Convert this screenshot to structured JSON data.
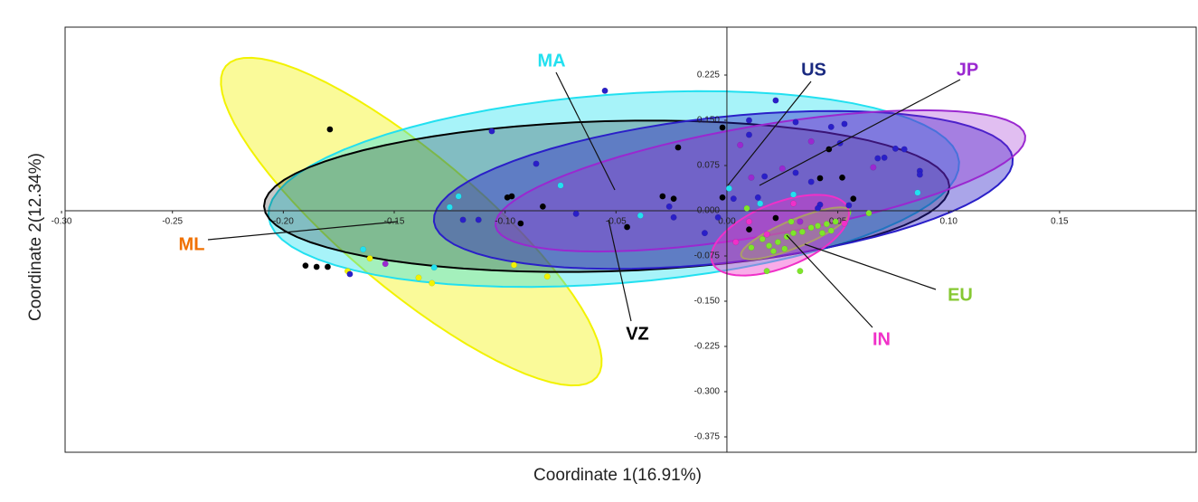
{
  "chart_data": {
    "type": "scatter",
    "x_label": "Coordinate 1(16.91%)",
    "y_label": "Coordinate 2(12.34%)",
    "xlim": [
      -0.2984,
      0.2116
    ],
    "ylim": [
      -0.4005,
      0.3045
    ],
    "xticks": [
      {
        "value": -0.3,
        "label": "-0.30"
      },
      -0.25,
      {
        "value": -0.2,
        "label": "-0.20"
      },
      -0.15,
      {
        "value": -0.1,
        "label": "-0.10"
      },
      -0.05,
      {
        "value": 0,
        "label": "0.00"
      },
      0.05,
      {
        "value": 0.1,
        "label": "0.10"
      },
      0.15
    ],
    "yticks": [
      0.225,
      {
        "value": 0.15,
        "label": "0.150"
      },
      0.075,
      {
        "value": 0,
        "label": "0.000"
      },
      -0.075,
      {
        "value": -0.15,
        "label": "-0.150"
      },
      -0.225,
      {
        "value": -0.3,
        "label": "-0.300"
      },
      -0.375
    ],
    "series": [
      {
        "name": "ML",
        "color": "#f2f200",
        "label_color": "#f07000",
        "x": [
          -0.161,
          -0.171,
          -0.139,
          -0.133,
          -0.096,
          -0.081
        ],
        "y": [
          -0.079,
          -0.1,
          -0.111,
          -0.12,
          -0.09,
          -0.109
        ],
        "ellipse": {
          "center": [
            -0.1423,
            -0.018
          ],
          "axis1": [
            0.0836,
            -0.258
          ],
          "axis2": [
            0.0196,
            0.0855
          ]
        }
      },
      {
        "name": "MA",
        "color": "#22e0f0",
        "label_color": "#22e0f0",
        "x": [
          -0.164,
          -0.132,
          -0.125,
          -0.121,
          -0.075,
          -0.039,
          0.001,
          0.03,
          0.086,
          0.015
        ],
        "y": [
          -0.064,
          -0.094,
          0.006,
          0.024,
          0.042,
          -0.008,
          0.037,
          0.027,
          0.03,
          0.012
        ],
        "ellipse": {
          "center": [
            -0.051,
            0.036
          ],
          "axis1": [
            0.1557,
            0.045
          ],
          "axis2": [
            0.0033,
            -0.156
          ]
        }
      },
      {
        "name": "VZ",
        "color": "#000000",
        "label_color": "#000000",
        "x": [
          -0.179,
          -0.19,
          -0.185,
          -0.18,
          -0.099,
          -0.097,
          -0.093,
          -0.083,
          -0.045,
          -0.029,
          -0.024,
          -0.022,
          -0.002,
          -0.002,
          0.01,
          0.042,
          0.052,
          0.057,
          0.022,
          0.046
        ],
        "y": [
          0.135,
          -0.091,
          -0.093,
          -0.093,
          0.022,
          0.024,
          -0.021,
          0.007,
          -0.027,
          0.024,
          0.02,
          0.105,
          0.138,
          0.022,
          -0.031,
          0.054,
          0.055,
          0.02,
          -0.012,
          0.102
        ],
        "ellipse": {
          "center": [
            -0.0542,
            0.024
          ],
          "axis1": [
            0.1545,
            0.0165
          ],
          "axis2": [
            0.0008,
            -0.1245
          ]
        }
      },
      {
        "name": "US",
        "color": "#2a1fc8",
        "label_color": "#1a2a80",
        "x": [
          -0.055,
          -0.106,
          -0.086,
          -0.119,
          -0.112,
          -0.068,
          -0.024,
          -0.026,
          -0.01,
          -0.004,
          0.003,
          0.01,
          0.01,
          0.022,
          0.031,
          0.017,
          0.031,
          0.038,
          0.042,
          0.047,
          0.053,
          0.041,
          0.055,
          0.068,
          0.071,
          0.076,
          0.08,
          0.087,
          0.087,
          -0.17,
          0.051,
          0.014
        ],
        "y": [
          0.199,
          0.132,
          0.078,
          -0.015,
          -0.015,
          -0.005,
          -0.011,
          0.007,
          -0.037,
          -0.011,
          0.02,
          0.15,
          0.126,
          0.183,
          0.147,
          0.057,
          0.063,
          0.048,
          0.01,
          0.139,
          0.144,
          0.004,
          0.009,
          0.087,
          0.088,
          0.103,
          0.102,
          0.066,
          0.06,
          -0.105,
          0.112,
          0.022
        ],
        "ellipse": {
          "center": [
            -0.0016,
            0.0345
          ],
          "axis1": [
            0.1305,
            0.0525
          ],
          "axis2": [
            0.0037,
            -0.12
          ]
        }
      },
      {
        "name": "JP",
        "color": "#9a28d0",
        "label_color": "#9a28d0",
        "x": [
          -0.154,
          0.006,
          0.011,
          0.038,
          0.066,
          0.025,
          0.033
        ],
        "y": [
          -0.088,
          0.109,
          0.055,
          0.115,
          0.072,
          0.07,
          -0.018
        ],
        "ellipse": {
          "center": [
            0.0151,
            0.0495
          ],
          "axis1": [
            0.1194,
            0.075
          ],
          "axis2": [
            0.0041,
            -0.09
          ]
        }
      },
      {
        "name": "EU",
        "color": "#7ee62a",
        "label_color": "#86c832",
        "x": [
          0.016,
          0.019,
          0.023,
          0.027,
          0.03,
          0.034,
          0.038,
          0.041,
          0.045,
          0.049,
          0.064,
          0.033,
          0.018,
          0.021,
          0.026,
          0.043,
          0.047,
          0.011,
          0.029,
          0.009
        ],
        "y": [
          -0.047,
          -0.058,
          -0.052,
          -0.043,
          -0.037,
          -0.035,
          -0.028,
          -0.025,
          -0.022,
          -0.018,
          -0.004,
          -0.1,
          -0.1,
          -0.067,
          -0.063,
          -0.037,
          -0.033,
          -0.061,
          -0.018,
          0.004
        ],
        "ellipse": {
          "center": [
            0.031,
            -0.0375
          ],
          "axis1": [
            0.0245,
            0.0375
          ],
          "axis2": [
            0.0024,
            -0.021
          ]
        }
      },
      {
        "name": "IN",
        "color": "#f030c8",
        "label_color": "#f030c8",
        "x": [
          0.004,
          0.01,
          0.018,
          0.053,
          0.03
        ],
        "y": [
          -0.052,
          -0.018,
          -0.039,
          -0.021,
          0.012
        ],
        "ellipse": {
          "center": [
            0.024,
            -0.0405
          ],
          "axis1": [
            0.0306,
            0.045
          ],
          "axis2": [
            0.0053,
            -0.0495
          ]
        }
      }
    ]
  }
}
